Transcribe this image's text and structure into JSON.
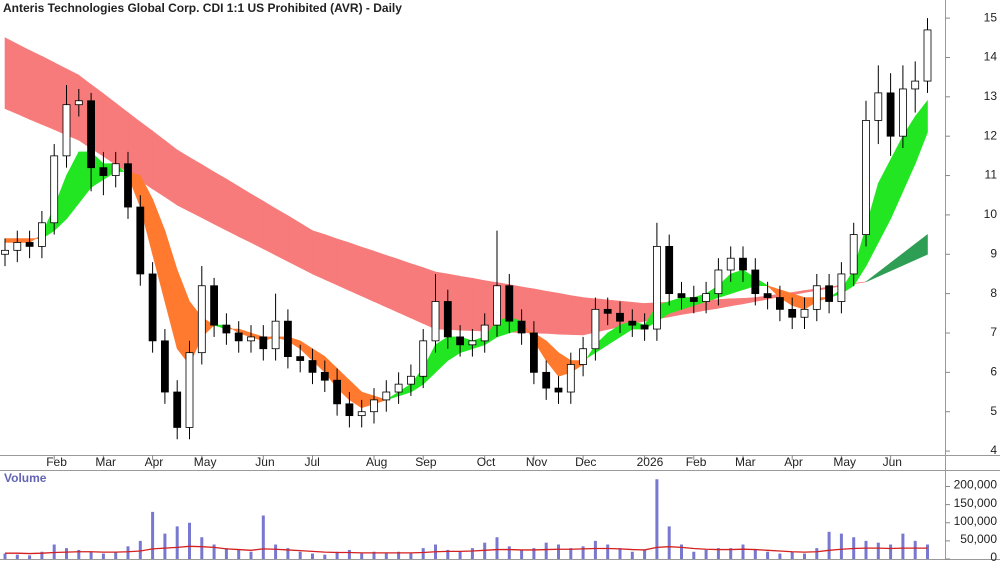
{
  "chart_data": [
    {
      "type": "candlestick",
      "title": "Anteris Technologies Global Corp. CDI 1:1 US Prohibited (AVR) - Daily",
      "categories": [
        null,
        null,
        null,
        null,
        "Feb",
        null,
        null,
        null,
        "Mar",
        null,
        null,
        null,
        "Apr",
        null,
        null,
        null,
        "May",
        null,
        null,
        null,
        null,
        "Jun",
        null,
        null,
        null,
        "Jul",
        null,
        null,
        null,
        null,
        "Aug",
        null,
        null,
        null,
        "Sep",
        null,
        null,
        null,
        null,
        "Oct",
        null,
        null,
        null,
        "Nov",
        null,
        null,
        null,
        "Dec",
        null,
        null,
        null,
        null,
        "2026",
        null,
        null,
        null,
        "Feb",
        null,
        null,
        null,
        "Mar",
        null,
        null,
        null,
        "Apr",
        null,
        null,
        null,
        "May",
        null,
        null,
        null,
        "Jun",
        null,
        null,
        null
      ],
      "open": [
        9.0,
        9.1,
        9.3,
        9.2,
        9.8,
        11.5,
        12.8,
        12.9,
        11.2,
        11.0,
        11.3,
        10.2,
        8.5,
        6.8,
        5.5,
        4.6,
        6.5,
        8.2,
        7.2,
        7.0,
        6.8,
        6.9,
        6.6,
        7.3,
        6.4,
        6.3,
        6.0,
        5.8,
        5.2,
        4.9,
        5.0,
        5.3,
        5.5,
        5.7,
        5.9,
        6.8,
        7.8,
        6.9,
        6.7,
        6.8,
        7.2,
        8.2,
        7.3,
        7.0,
        6.0,
        5.6,
        5.5,
        6.2,
        6.6,
        7.6,
        7.5,
        7.3,
        7.2,
        7.1,
        9.2,
        8.0,
        7.9,
        7.8,
        8.0,
        8.6,
        8.9,
        8.6,
        8.0,
        7.9,
        7.6,
        7.4,
        7.6,
        8.2,
        7.8,
        8.5,
        9.5,
        12.4,
        13.1,
        12.0,
        13.2,
        13.4
      ],
      "high": [
        9.4,
        9.6,
        9.6,
        10.1,
        11.8,
        13.3,
        13.2,
        13.1,
        11.6,
        11.6,
        11.6,
        10.5,
        8.8,
        7.1,
        5.8,
        6.8,
        8.7,
        8.4,
        7.5,
        7.3,
        7.2,
        7.2,
        8.0,
        7.6,
        6.7,
        6.6,
        6.3,
        6.1,
        5.5,
        5.3,
        5.6,
        5.8,
        6.0,
        6.2,
        7.1,
        8.5,
        8.1,
        7.2,
        7.1,
        7.5,
        9.6,
        8.5,
        7.6,
        7.3,
        6.3,
        5.9,
        6.5,
        6.9,
        7.9,
        7.9,
        7.8,
        7.6,
        7.5,
        9.8,
        9.5,
        8.3,
        8.2,
        8.3,
        8.9,
        9.2,
        9.2,
        8.9,
        8.3,
        8.2,
        7.9,
        7.9,
        8.5,
        8.5,
        8.8,
        9.8,
        12.9,
        13.8,
        13.6,
        13.8,
        13.9,
        15.0
      ],
      "low": [
        8.7,
        8.8,
        8.9,
        8.9,
        9.5,
        11.2,
        12.5,
        10.6,
        10.5,
        10.7,
        9.9,
        8.2,
        6.5,
        5.2,
        4.3,
        4.3,
        6.2,
        6.9,
        6.7,
        6.5,
        6.5,
        6.3,
        6.3,
        6.1,
        6.0,
        5.7,
        5.5,
        4.9,
        4.6,
        4.6,
        4.7,
        5.0,
        5.2,
        5.4,
        5.6,
        6.5,
        6.6,
        6.4,
        6.4,
        6.5,
        6.9,
        7.0,
        6.7,
        5.7,
        5.3,
        5.2,
        5.2,
        5.9,
        6.3,
        7.2,
        7.0,
        6.9,
        6.8,
        6.8,
        7.7,
        7.6,
        7.5,
        7.5,
        7.7,
        8.3,
        8.3,
        7.7,
        7.6,
        7.3,
        7.1,
        7.1,
        7.3,
        7.5,
        7.5,
        8.2,
        9.2,
        11.8,
        11.5,
        11.7,
        12.6,
        13.1
      ],
      "close": [
        9.1,
        9.3,
        9.2,
        9.8,
        11.5,
        12.8,
        12.9,
        11.2,
        11.0,
        11.3,
        10.2,
        8.5,
        6.8,
        5.5,
        4.6,
        6.5,
        8.2,
        7.2,
        7.0,
        6.8,
        6.9,
        6.6,
        7.3,
        6.4,
        6.3,
        6.0,
        5.8,
        5.2,
        4.9,
        5.0,
        5.3,
        5.5,
        5.7,
        5.9,
        6.8,
        7.8,
        6.9,
        6.7,
        6.8,
        7.2,
        8.2,
        7.3,
        7.0,
        6.0,
        5.6,
        5.5,
        6.2,
        6.6,
        7.6,
        7.5,
        7.3,
        7.2,
        7.1,
        9.2,
        8.0,
        7.9,
        7.8,
        8.0,
        8.6,
        8.9,
        8.6,
        8.0,
        7.9,
        7.6,
        7.4,
        7.6,
        8.2,
        7.8,
        8.5,
        9.5,
        12.4,
        13.1,
        12.0,
        13.2,
        13.4,
        14.7
      ],
      "up_color": "#ffffff",
      "down_color": "#000000",
      "ribbons": [
        {
          "fast": [
            12.7,
            12.57,
            12.43,
            12.3,
            12.17,
            12.03,
            11.9,
            11.69,
            11.49,
            11.28,
            11.08,
            10.87,
            10.66,
            10.46,
            10.25,
            10.09,
            9.93,
            9.77,
            9.61,
            9.45,
            9.3,
            9.14,
            8.98,
            8.82,
            8.66,
            8.5,
            8.36,
            8.22,
            8.08,
            7.94,
            7.8,
            7.66,
            7.52,
            7.38,
            7.24,
            7.1,
            7.09,
            7.07,
            7.06,
            7.05,
            7.04,
            7.02,
            7.01,
            7.0,
            6.99,
            6.97,
            6.96,
            6.95,
            7.02,
            7.09,
            7.16,
            7.23,
            7.3,
            7.36,
            7.41,
            7.47,
            7.52,
            7.58,
            7.63,
            7.69,
            7.74,
            7.8,
            7.86,
            7.92,
            7.97,
            8.03,
            8.08,
            8.14,
            8.19,
            8.25,
            8.3,
            8.54,
            8.78,
            9.02,
            9.26,
            9.5
          ],
          "slow": [
            14.5,
            14.34,
            14.18,
            14.03,
            13.87,
            13.71,
            13.55,
            13.31,
            13.08,
            12.84,
            12.6,
            12.36,
            12.13,
            11.89,
            11.65,
            11.46,
            11.28,
            11.09,
            10.91,
            10.72,
            10.53,
            10.35,
            10.16,
            9.98,
            9.79,
            9.6,
            9.5,
            9.39,
            9.29,
            9.18,
            9.08,
            8.97,
            8.87,
            8.76,
            8.66,
            8.55,
            8.5,
            8.44,
            8.39,
            8.33,
            8.28,
            8.23,
            8.17,
            8.12,
            8.06,
            8.01,
            7.95,
            7.9,
            7.87,
            7.84,
            7.81,
            7.78,
            7.75,
            7.77,
            7.78,
            7.8,
            7.82,
            7.83,
            7.85,
            7.87,
            7.88,
            7.9,
            7.94,
            7.99,
            8.03,
            8.08,
            8.12,
            8.17,
            8.21,
            8.26,
            8.3,
            8.44,
            8.58,
            8.72,
            8.86,
            9.0
          ],
          "up_color": "#2f9e55",
          "down_color": "#f77b7b"
        },
        {
          "fast": [
            9.3,
            9.3,
            9.3,
            9.5,
            10.2,
            11.0,
            11.6,
            11.6,
            11.3,
            11.3,
            11.0,
            10.2,
            9.0,
            7.8,
            6.6,
            6.2,
            6.9,
            7.2,
            7.2,
            7.0,
            6.9,
            6.8,
            6.9,
            6.8,
            6.6,
            6.3,
            6.0,
            5.6,
            5.3,
            5.1,
            5.2,
            5.3,
            5.5,
            5.7,
            6.1,
            6.7,
            6.9,
            6.9,
            6.8,
            6.9,
            7.3,
            7.4,
            7.3,
            6.8,
            6.3,
            5.9,
            6.0,
            6.2,
            6.7,
            7.0,
            7.2,
            7.3,
            7.2,
            7.7,
            7.8,
            7.9,
            7.9,
            8.0,
            8.2,
            8.5,
            8.6,
            8.4,
            8.2,
            7.9,
            7.7,
            7.6,
            7.8,
            7.9,
            8.1,
            8.6,
            9.7,
            10.8,
            11.4,
            12.0,
            12.5,
            12.9
          ],
          "slow": [
            9.4,
            9.4,
            9.4,
            9.4,
            9.6,
            9.9,
            10.3,
            10.7,
            10.9,
            11.1,
            11.1,
            11.0,
            10.4,
            9.6,
            8.6,
            7.8,
            7.4,
            7.2,
            7.1,
            7.1,
            7.0,
            6.9,
            6.9,
            6.9,
            6.8,
            6.6,
            6.4,
            6.1,
            5.8,
            5.5,
            5.4,
            5.3,
            5.4,
            5.5,
            5.7,
            6.0,
            6.3,
            6.5,
            6.6,
            6.7,
            6.9,
            7.0,
            7.1,
            7.0,
            6.8,
            6.5,
            6.3,
            6.3,
            6.5,
            6.7,
            6.9,
            7.1,
            7.1,
            7.3,
            7.5,
            7.6,
            7.7,
            7.8,
            7.9,
            8.0,
            8.1,
            8.2,
            8.2,
            8.1,
            8.0,
            7.9,
            7.9,
            7.9,
            8.0,
            8.2,
            8.7,
            9.3,
            9.9,
            10.6,
            11.3,
            12.1
          ],
          "up_color": "#22e622",
          "down_color": "#ff7a2e"
        }
      ],
      "ylim": [
        3.9,
        15.46
      ],
      "yticks": [
        4,
        5,
        6,
        7,
        8,
        9,
        10,
        11,
        12,
        13,
        14,
        15
      ]
    },
    {
      "type": "bar",
      "title": "Volume",
      "values": [
        15000,
        12000,
        10000,
        20000,
        40000,
        30000,
        25000,
        20000,
        15000,
        20000,
        35000,
        50000,
        130000,
        70000,
        90000,
        100000,
        60000,
        40000,
        30000,
        25000,
        20000,
        120000,
        40000,
        30000,
        20000,
        15000,
        12000,
        20000,
        25000,
        15000,
        20000,
        15000,
        20000,
        15000,
        30000,
        40000,
        25000,
        20000,
        30000,
        45000,
        60000,
        35000,
        25000,
        30000,
        45000,
        40000,
        30000,
        35000,
        50000,
        40000,
        30000,
        20000,
        25000,
        220000,
        90000,
        40000,
        20000,
        25000,
        30000,
        30000,
        40000,
        25000,
        20000,
        15000,
        20000,
        15000,
        30000,
        75000,
        70000,
        60000,
        50000,
        45000,
        40000,
        70000,
        50000,
        40000
      ],
      "color": "#7878d0",
      "ma_values": [
        16000,
        16000,
        15000,
        16000,
        18000,
        19000,
        20000,
        20000,
        19000,
        19000,
        20000,
        22000,
        28000,
        30000,
        32000,
        35000,
        34000,
        32000,
        28000,
        26000,
        24000,
        28000,
        27000,
        25000,
        23000,
        21000,
        19000,
        18000,
        18000,
        17000,
        17000,
        17000,
        17000,
        17000,
        18000,
        20000,
        21000,
        21000,
        22000,
        24000,
        26000,
        26000,
        25000,
        25000,
        26000,
        27000,
        27000,
        28000,
        29000,
        29000,
        28000,
        26000,
        25000,
        32000,
        34000,
        32000,
        29000,
        27000,
        26000,
        26000,
        27000,
        26000,
        24000,
        22000,
        20000,
        19000,
        20000,
        24000,
        27000,
        29000,
        30000,
        30000,
        29000,
        30000,
        30000,
        30000
      ],
      "ma_color": "#d42020",
      "ylim": [
        0,
        240000
      ],
      "yticks": [
        0,
        {
          "value": 50000,
          "label": "50,000"
        },
        {
          "value": 100000,
          "label": "100,000"
        },
        {
          "value": 150000,
          "label": "150,000"
        },
        {
          "value": 200000,
          "label": "200,000"
        }
      ]
    }
  ]
}
